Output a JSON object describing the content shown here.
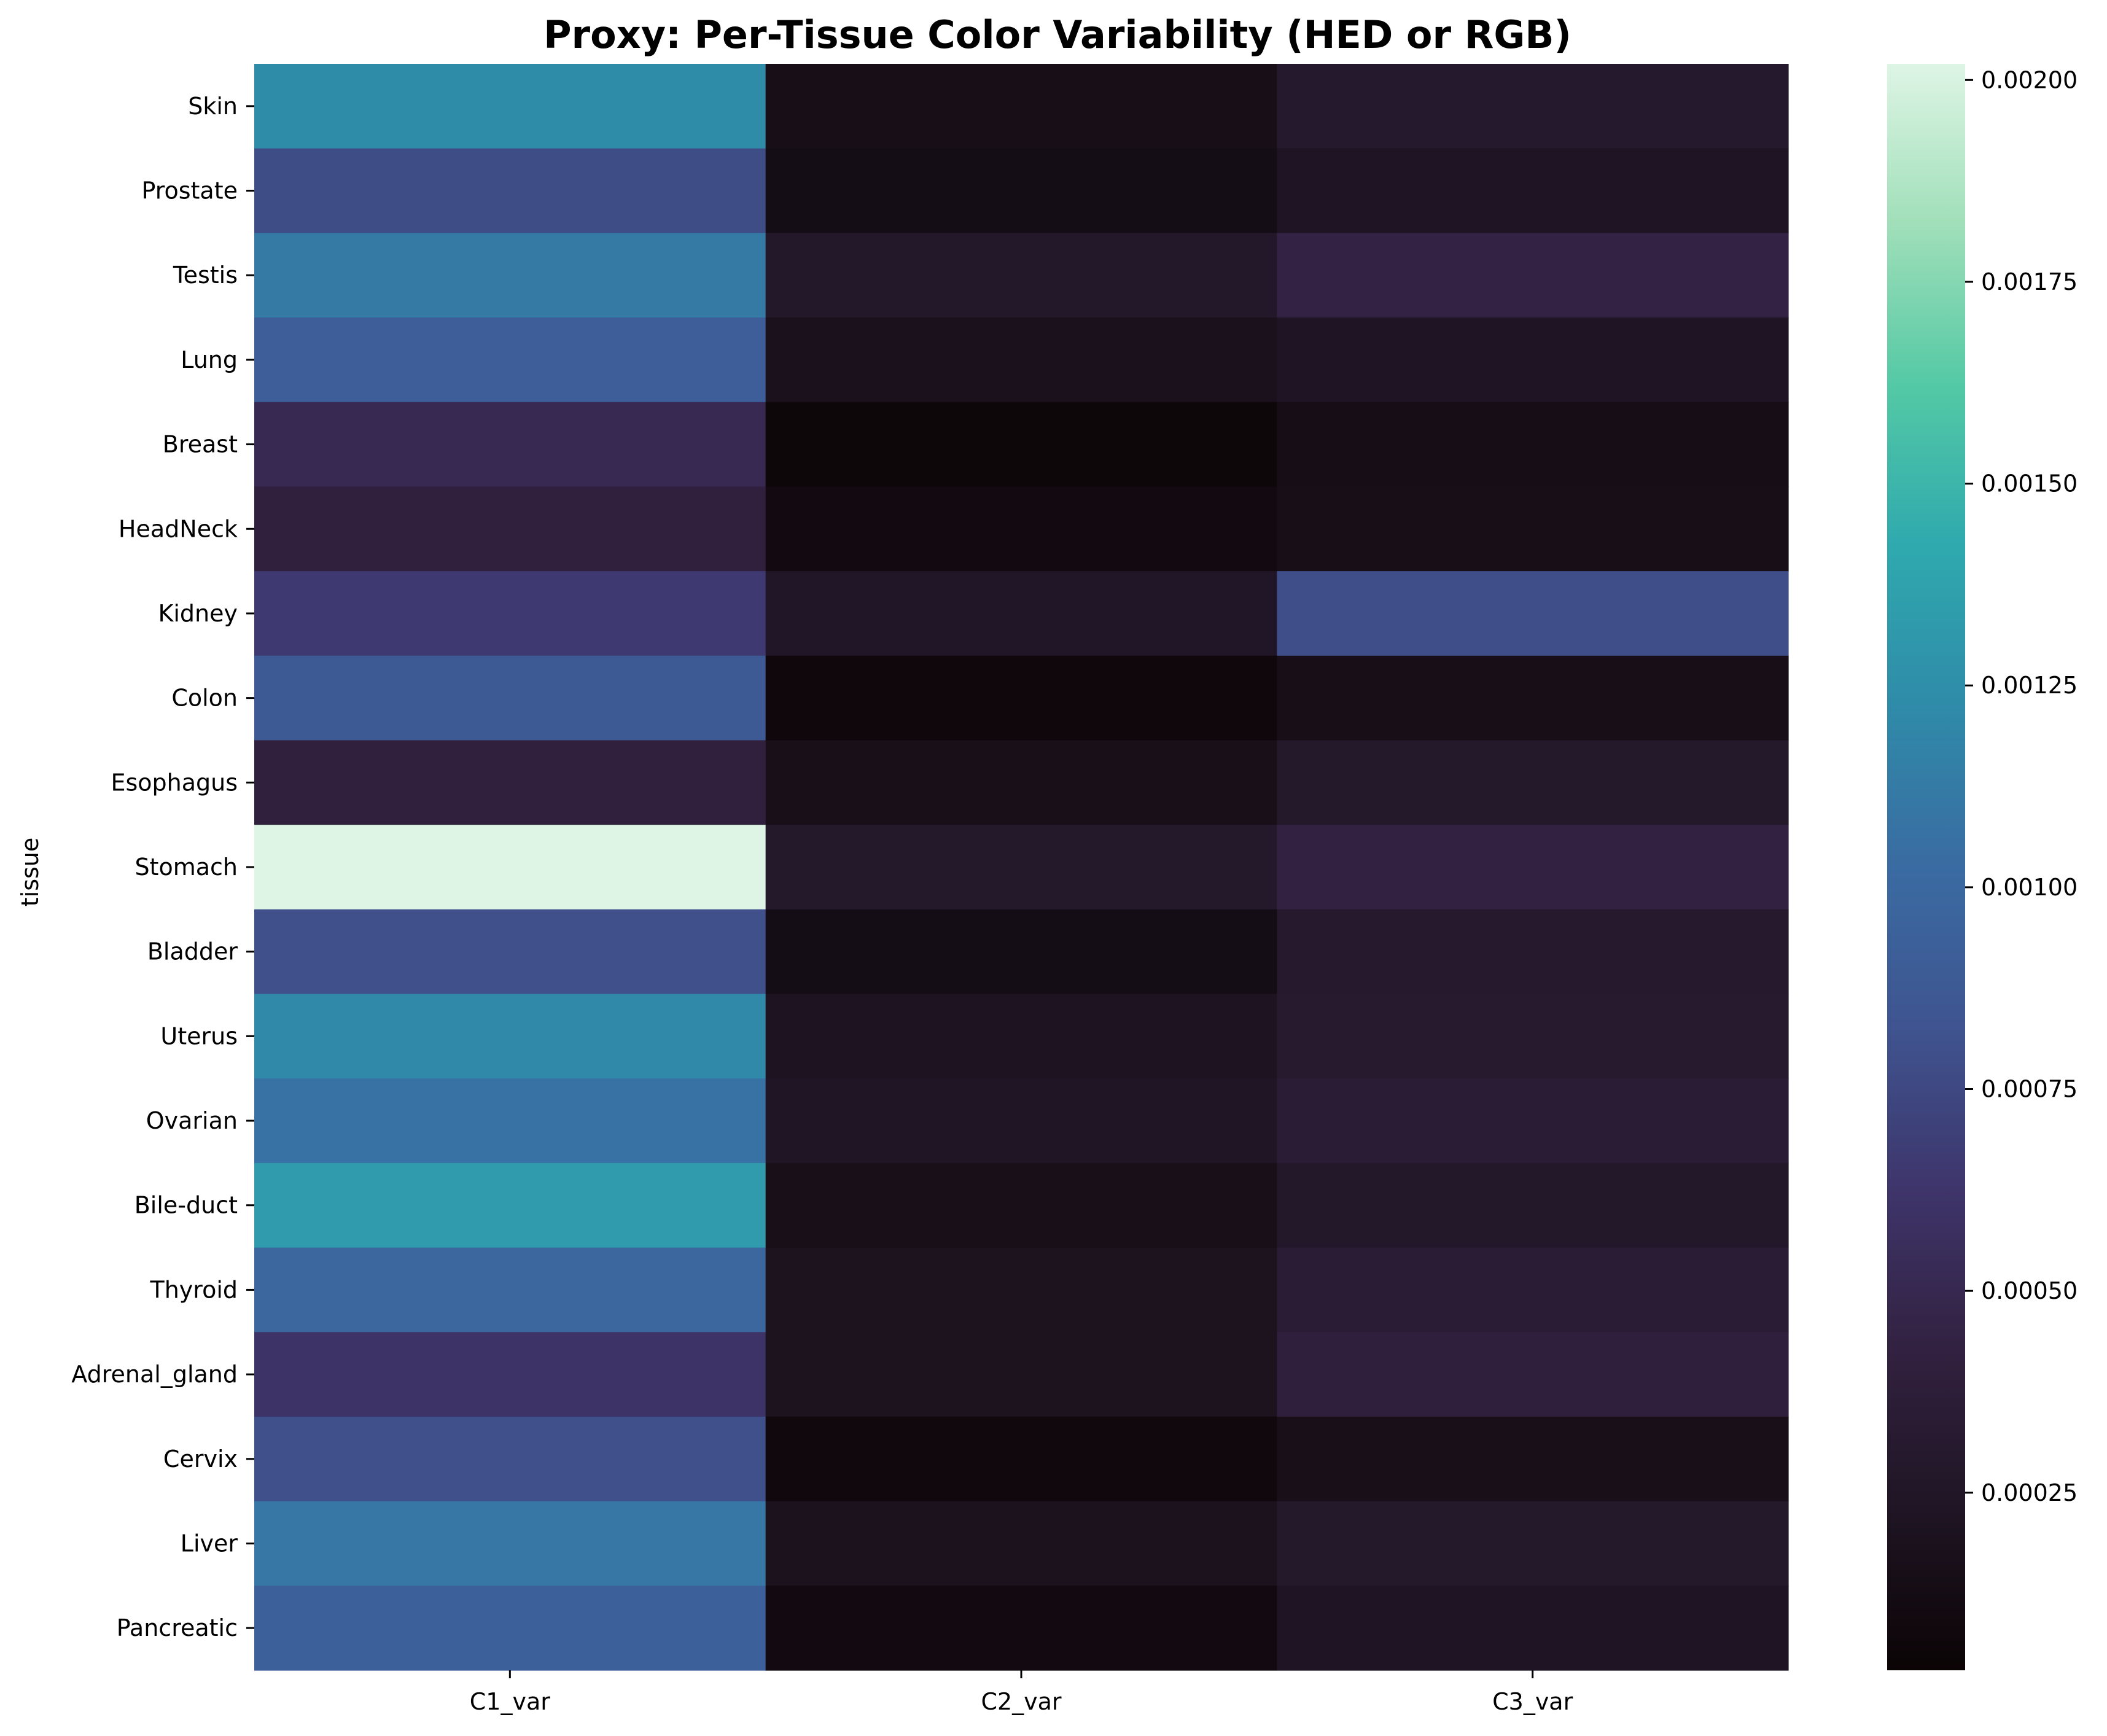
{
  "chart_data": {
    "type": "heatmap",
    "title": "Proxy: Per-Tissue Color Variability (HED or RGB)",
    "xlabel": "",
    "ylabel": "tissue",
    "columns": [
      "C1_var",
      "C2_var",
      "C3_var"
    ],
    "rows": [
      "Skin",
      "Prostate",
      "Testis",
      "Lung",
      "Breast",
      "HeadNeck",
      "Kidney",
      "Colon",
      "Esophagus",
      "Stomach",
      "Bladder",
      "Uterus",
      "Ovarian",
      "Bile-duct",
      "Thyroid",
      "Adrenal_gland",
      "Cervix",
      "Liver",
      "Pancreatic"
    ],
    "values": [
      [
        0.00123,
        0.00015,
        0.00029
      ],
      [
        0.00078,
        0.00013,
        0.00022
      ],
      [
        0.00111,
        0.00027,
        0.00044
      ],
      [
        0.00091,
        0.00018,
        0.00022
      ],
      [
        0.00051,
        6e-05,
        0.00014
      ],
      [
        0.00041,
        0.0001,
        0.00015
      ],
      [
        0.00066,
        0.00025,
        0.00079
      ],
      [
        0.00088,
        7e-05,
        0.00015
      ],
      [
        0.00041,
        0.00016,
        0.00028
      ],
      [
        0.00202,
        0.00028,
        0.00043
      ],
      [
        0.0008,
        0.00013,
        0.0003
      ],
      [
        0.00121,
        0.00021,
        0.00031
      ],
      [
        0.00107,
        0.00023,
        0.00035
      ],
      [
        0.00133,
        0.00016,
        0.00027
      ],
      [
        0.00098,
        0.0002,
        0.00034
      ],
      [
        0.00061,
        0.0002,
        0.0004
      ],
      [
        0.0008,
        8e-05,
        0.00016
      ],
      [
        0.0011,
        0.00019,
        0.00028
      ],
      [
        0.00093,
        0.0001,
        0.00022
      ]
    ],
    "colorbar": {
      "colormap": "mako",
      "vmin": 3e-05,
      "vmax": 0.00202,
      "ticks": [
        0.00025,
        0.0005,
        0.00075,
        0.001,
        0.00125,
        0.0015,
        0.00175,
        0.002
      ],
      "tick_labels": [
        "0.00025",
        "0.00050",
        "0.00075",
        "0.00100",
        "0.00125",
        "0.00150",
        "0.00175",
        "0.00200"
      ]
    },
    "grid": false
  }
}
